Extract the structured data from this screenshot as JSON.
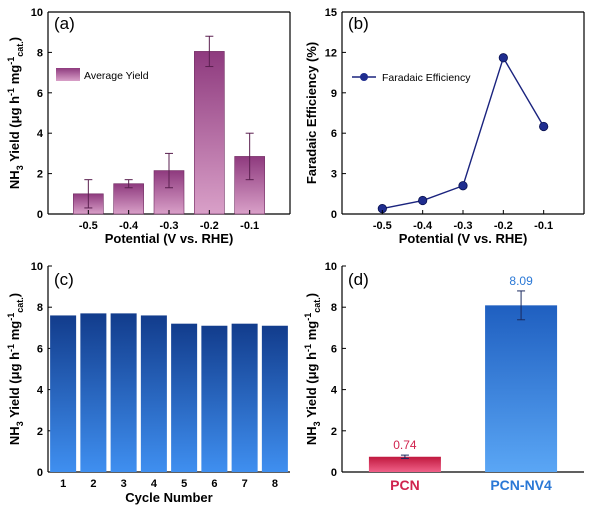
{
  "chart_data": [
    {
      "panel": "(a)",
      "type": "bar",
      "categories": [
        "-0.5",
        "-0.4",
        "-0.3",
        "-0.2",
        "-0.1"
      ],
      "series": [
        {
          "name": "Average Yield",
          "values": [
            1.0,
            1.5,
            2.15,
            8.05,
            2.85
          ],
          "errors": [
            0.7,
            0.2,
            0.85,
            0.75,
            1.15
          ]
        }
      ],
      "xlabel": "Potential (V vs. RHE)",
      "ylabel": "NH3 Yield (μg h⁻¹ mg⁻¹cat.)",
      "ylim": [
        0,
        10
      ],
      "yticks": [
        0,
        2,
        4,
        6,
        8,
        10
      ],
      "legend": "top-left",
      "bar_color": "#a0508f"
    },
    {
      "panel": "(b)",
      "type": "line",
      "x": [
        "-0.5",
        "-0.4",
        "-0.3",
        "-0.2",
        "-0.1"
      ],
      "series": [
        {
          "name": "Faradaic Efficiency",
          "values": [
            0.4,
            1.0,
            2.1,
            11.6,
            6.5
          ]
        }
      ],
      "xlabel": "Potential (V vs. RHE)",
      "ylabel": "Faradaic Efficiency (%)",
      "ylim": [
        0,
        15
      ],
      "yticks": [
        0,
        3,
        6,
        9,
        12,
        15
      ],
      "legend": "top-left",
      "line_color": "#1a237e"
    },
    {
      "panel": "(c)",
      "type": "bar",
      "categories": [
        "1",
        "2",
        "3",
        "4",
        "5",
        "6",
        "7",
        "8"
      ],
      "series": [
        {
          "values": [
            7.6,
            7.7,
            7.7,
            7.6,
            7.2,
            7.1,
            7.2,
            7.1
          ]
        }
      ],
      "xlabel": "Cycle Number",
      "ylabel": "NH3 Yield (μg h⁻¹ mg⁻¹cat.)",
      "ylim": [
        0,
        10
      ],
      "yticks": [
        0,
        2,
        4,
        6,
        8,
        10
      ],
      "bar_color": "#1f4fa8"
    },
    {
      "panel": "(d)",
      "type": "bar",
      "categories": [
        "PCN",
        "PCN-NV4"
      ],
      "series": [
        {
          "values": [
            0.74,
            8.09
          ],
          "errors": [
            0.08,
            0.7
          ],
          "labels": [
            "0.74",
            "8.09"
          ]
        }
      ],
      "ylabel": "NH3 Yield (μg h⁻¹ mg⁻¹cat.)",
      "ylim": [
        0,
        10
      ],
      "yticks": [
        0,
        2,
        4,
        6,
        8,
        10
      ],
      "category_colors": [
        "#d0234e",
        "#2a78d6"
      ]
    }
  ]
}
